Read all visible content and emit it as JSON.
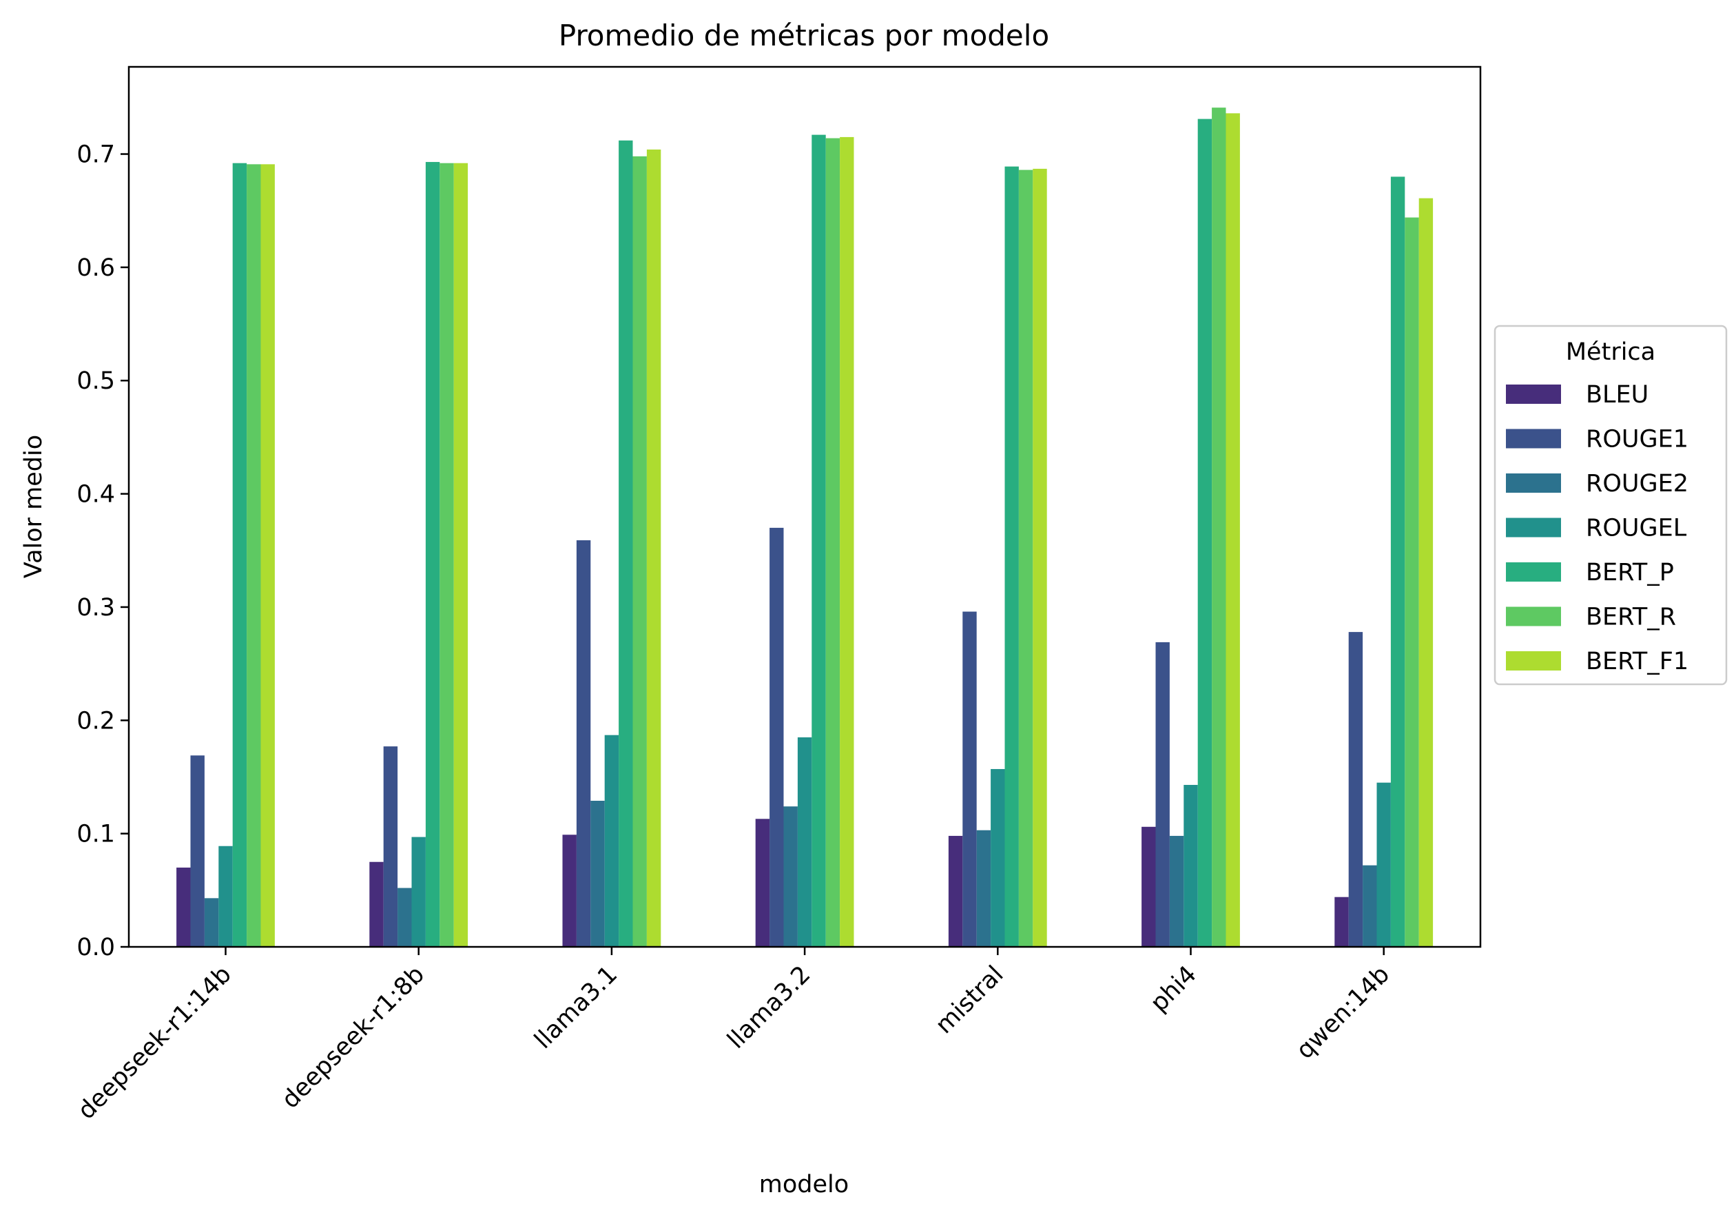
{
  "chart_data": {
    "type": "bar",
    "title": "Promedio de métricas por modelo",
    "xlabel": "modelo",
    "ylabel": "Valor medio",
    "ylim": [
      0,
      0.777
    ],
    "yticks": [
      "0.0",
      "0.1",
      "0.2",
      "0.3",
      "0.4",
      "0.5",
      "0.6",
      "0.7"
    ],
    "categories": [
      "deepseek-r1:14b",
      "deepseek-r1:8b",
      "llama3.1",
      "llama3.2",
      "mistral",
      "phi4",
      "qwen:14b"
    ],
    "legend_title": "Métrica",
    "legend_position": "right",
    "grid": false,
    "series": [
      {
        "name": "BLEU",
        "color": "#472d7b",
        "values": [
          0.07,
          0.075,
          0.099,
          0.113,
          0.098,
          0.106,
          0.044
        ]
      },
      {
        "name": "ROUGE1",
        "color": "#3b528b",
        "values": [
          0.169,
          0.177,
          0.359,
          0.37,
          0.296,
          0.269,
          0.278
        ]
      },
      {
        "name": "ROUGE2",
        "color": "#2c728e",
        "values": [
          0.043,
          0.052,
          0.129,
          0.124,
          0.103,
          0.098,
          0.072
        ]
      },
      {
        "name": "ROUGEL",
        "color": "#21918c",
        "values": [
          0.089,
          0.097,
          0.187,
          0.185,
          0.157,
          0.143,
          0.145
        ]
      },
      {
        "name": "BERT_P",
        "color": "#28ae80",
        "values": [
          0.692,
          0.693,
          0.712,
          0.717,
          0.689,
          0.731,
          0.68
        ]
      },
      {
        "name": "BERT_R",
        "color": "#5ec962",
        "values": [
          0.691,
          0.692,
          0.698,
          0.714,
          0.686,
          0.741,
          0.644
        ]
      },
      {
        "name": "BERT_F1",
        "color": "#addc30",
        "values": [
          0.691,
          0.692,
          0.704,
          0.715,
          0.687,
          0.736,
          0.661
        ]
      }
    ]
  }
}
